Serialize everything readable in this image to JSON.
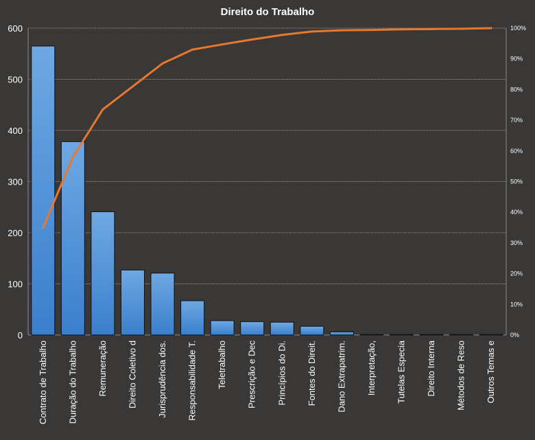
{
  "chart_data": {
    "type": "bar",
    "title": "Direito do Trabalho",
    "categories": [
      "Contrato de Trabalho",
      "Duração do Trabalho",
      "Remuneração",
      "Direito Coletivo d",
      "Jurisprudência dos.",
      "Responsabilidade T.",
      "Teletrabalho",
      "Prescrição e Dec",
      "Princípios do Di.",
      "Fontes do Direit.",
      "Dano Extrapatrim.",
      "Interpretação,",
      "Tutelas Especia",
      "Direito Interna",
      "Métodos de Reso",
      "Outros Temas e"
    ],
    "series": [
      {
        "type": "bar",
        "values": [
          565,
          378,
          241,
          127,
          121,
          67,
          28,
          26,
          25,
          17,
          6,
          1,
          1,
          1,
          1,
          1
        ]
      },
      {
        "type": "line",
        "axis": "right",
        "values": [
          0.35,
          0.58,
          0.735,
          0.81,
          0.885,
          0.93,
          0.947,
          0.963,
          0.978,
          0.989,
          0.993,
          0.994,
          0.996,
          0.997,
          0.998,
          1.0
        ]
      }
    ],
    "ylim": [
      0,
      600
    ],
    "yticks": [
      "0",
      "100",
      "200",
      "300",
      "400",
      "500",
      "600"
    ],
    "y2lim": [
      0,
      1
    ],
    "y2ticks": [
      "0%",
      "10%",
      "20%",
      "30%",
      "40%",
      "50%",
      "60%",
      "70%",
      "80%",
      "90%",
      "100%"
    ],
    "grid": true,
    "colors": {
      "background": "#3a3836",
      "plot_background": "#3a3836",
      "bar_top": "#6fa8e3",
      "bar_bottom": "#3a7fcc",
      "bar_stroke": "#111111",
      "line": "#e8782c",
      "grid": "#9a9a9a",
      "text": "#ffffff"
    }
  }
}
